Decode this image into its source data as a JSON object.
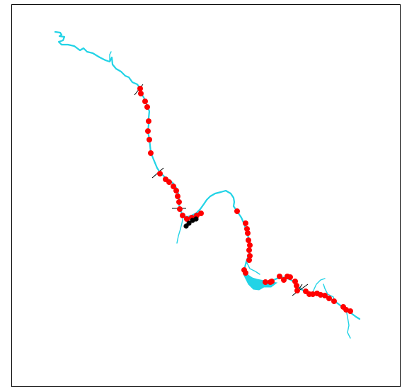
{
  "map": {
    "river_color": "#22d3e6",
    "site_color": "#ff0000",
    "special_site_color": "#000000",
    "divider_color": "#000000",
    "background_color": "#ffffff",
    "frame_color": "#000000",
    "site_count_red": 58,
    "site_count_black": 4,
    "divider_count": 6
  }
}
